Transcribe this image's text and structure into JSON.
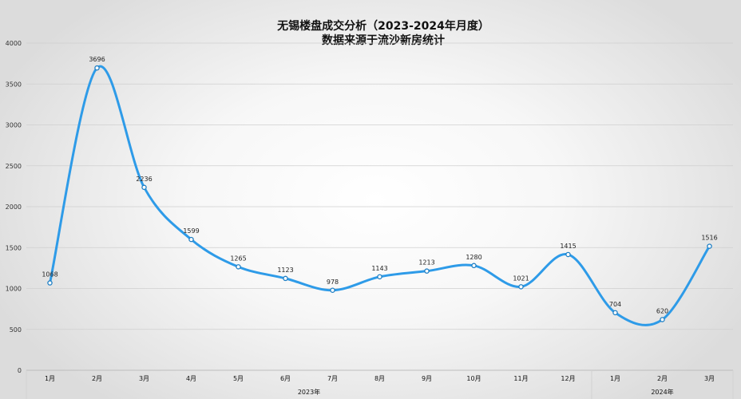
{
  "chart_data": {
    "type": "line",
    "title": "无锡楼盘成交分析（2023-2024年月度）",
    "subtitle": "数据来源于流沙新房统计",
    "categories": [
      "1月",
      "2月",
      "3月",
      "4月",
      "5月",
      "6月",
      "7月",
      "8月",
      "9月",
      "10月",
      "11月",
      "12月",
      "1月",
      "2月",
      "3月"
    ],
    "groups": [
      {
        "label": "2023年",
        "start": 0,
        "end": 11
      },
      {
        "label": "2024年",
        "start": 12,
        "end": 14
      }
    ],
    "series": [
      {
        "values": [
          1068,
          3696,
          2236,
          1599,
          1265,
          1123,
          978,
          1143,
          1213,
          1280,
          1021,
          1415,
          704,
          620,
          1516
        ]
      }
    ],
    "ylim": [
      0,
      4000
    ],
    "yticks": [
      0,
      500,
      1000,
      1500,
      2000,
      2500,
      3000,
      3500,
      4000
    ],
    "grid": true,
    "smooth": true,
    "color": "#2e9be8"
  }
}
